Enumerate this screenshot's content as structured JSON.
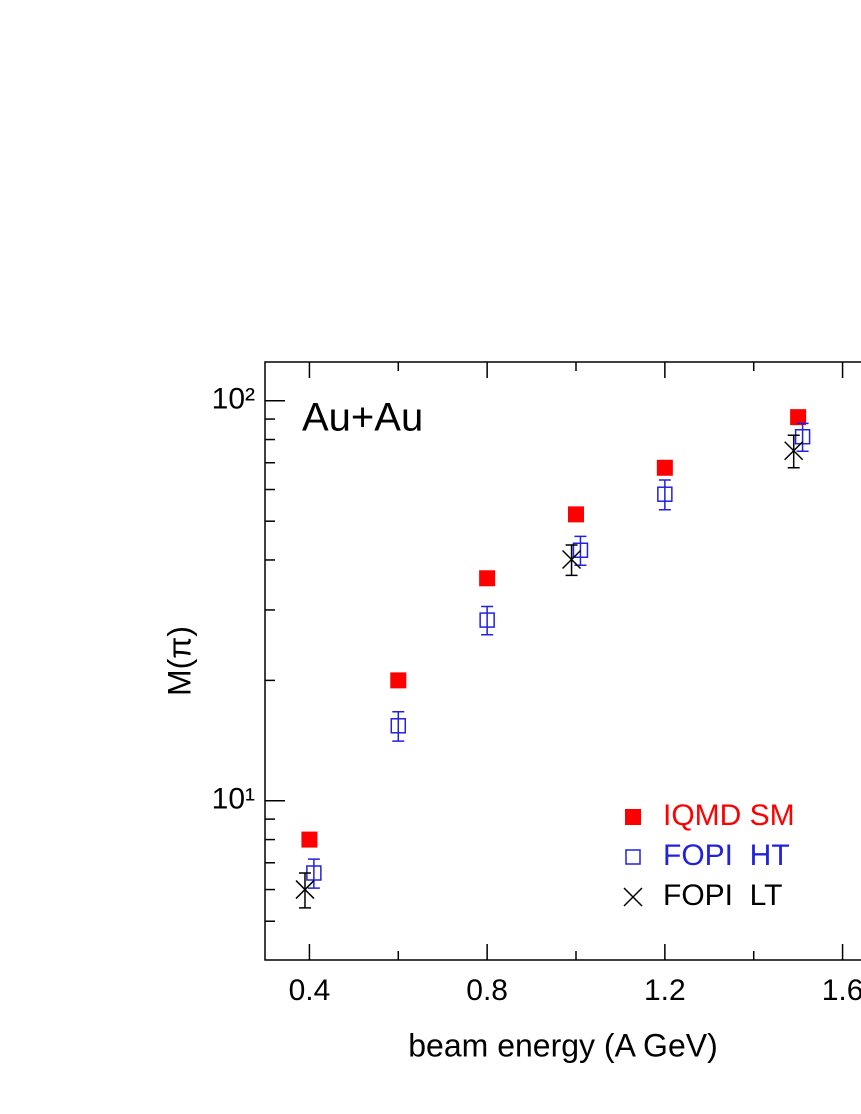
{
  "chart_data": {
    "type": "scatter",
    "annotation": "Au+Au",
    "xlabel": "beam energy (A GeV)",
    "ylabel": "M(π)",
    "xlim": [
      0.3,
      1.7
    ],
    "xticks": [
      0.4,
      0.8,
      1.2,
      1.6
    ],
    "xminorticks": [
      0.6,
      1.0,
      1.4
    ],
    "ylim": [
      4,
      125
    ],
    "ylog": true,
    "yticks": [
      {
        "value": 10,
        "label": "10¹"
      },
      {
        "value": 100,
        "label": "10²"
      }
    ],
    "yminorticks": [
      5,
      6,
      7,
      8,
      9,
      20,
      30,
      40,
      50,
      60,
      70,
      80,
      90
    ],
    "legend": "lower right",
    "series": [
      {
        "name": "IQMD SM",
        "color": "#ff0000",
        "marker": "filled-square",
        "x": [
          0.4,
          0.6,
          0.8,
          1.0,
          1.2,
          1.5
        ],
        "values": [
          8,
          20,
          36,
          52,
          68,
          91
        ]
      },
      {
        "name": "FOPI  HT",
        "color": "#2222dd",
        "marker": "open-square",
        "x": [
          0.41,
          0.6,
          0.8,
          1.01,
          1.2,
          1.51
        ],
        "values": [
          6.6,
          15.4,
          28.3,
          42.3,
          58.4,
          81.3
        ],
        "errors": [
          0.55,
          1.3,
          2.3,
          3.5,
          5,
          6.5
        ]
      },
      {
        "name": "FOPI  LT",
        "color": "#000000",
        "marker": "x",
        "x": [
          0.39,
          0.99,
          1.49
        ],
        "values": [
          6.0,
          40.1,
          75
        ],
        "errors": [
          0.6,
          3.5,
          7
        ]
      }
    ]
  }
}
